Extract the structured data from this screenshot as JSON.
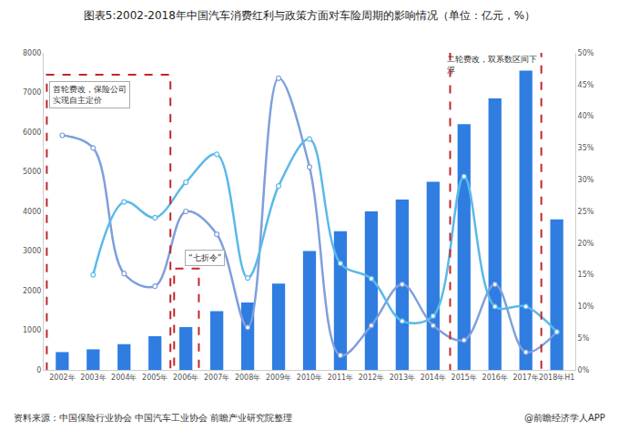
{
  "chart_data": {
    "type": "bar",
    "title": "图表5:2002-2018年中国汽车消费红利与政策方面对车险周期的影响情况（单位：亿元，%）",
    "source": "资料来源：中国保险行业协会 中国汽车工业协会 前瞻产业研究院整理",
    "credit": "@前瞻经济学人APP",
    "categories": [
      "2002年",
      "2003年",
      "2004年",
      "2005年",
      "2006年",
      "2007年",
      "2008年",
      "2009年",
      "2010年",
      "2011年",
      "2012年",
      "2013年",
      "2014年",
      "2015年",
      "2016年",
      "2017年",
      "2018年H1"
    ],
    "series": [
      {
        "type": "bar",
        "color": "#2f7de1",
        "values": [
          450,
          520,
          650,
          850,
          1080,
          1480,
          1700,
          2180,
          3000,
          3500,
          4000,
          4300,
          4750,
          6200,
          6850,
          7550,
          3800
        ]
      },
      {
        "type": "line",
        "axis": "y2",
        "color": "#7f9fdc",
        "marker": "circle",
        "line_style": "smooth",
        "values": [
          37,
          35,
          15.2,
          13.2,
          25,
          21.4,
          6.7,
          46,
          32,
          2.3,
          7,
          13.5,
          7,
          4.7,
          13.5,
          2.8,
          6
        ]
      },
      {
        "type": "line",
        "axis": "y2",
        "color": "#5bb9e8",
        "marker": "circle",
        "line_style": "smooth",
        "values": [
          null,
          15,
          26.5,
          24,
          29.6,
          34,
          14.5,
          29,
          36.4,
          16.8,
          14.4,
          7.7,
          8.5,
          30.5,
          10,
          10,
          6
        ]
      }
    ],
    "ylim": [
      0,
      8000
    ],
    "yticks": [
      0,
      1000,
      2000,
      3000,
      4000,
      5000,
      6000,
      7000,
      8000
    ],
    "y2lim": [
      0,
      50
    ],
    "y2ticks": [
      {
        "value": 0,
        "label": "0%"
      },
      {
        "value": 5,
        "label": "5%"
      },
      {
        "value": 10,
        "label": "10%"
      },
      {
        "value": 15,
        "label": "15%"
      },
      {
        "value": 20,
        "label": "20%"
      },
      {
        "value": 25,
        "label": "25%"
      },
      {
        "value": 30,
        "label": "30%"
      },
      {
        "value": 35,
        "label": "35%"
      },
      {
        "value": 40,
        "label": "40%"
      },
      {
        "value": 45,
        "label": "45%"
      },
      {
        "value": 50,
        "label": "50%"
      }
    ],
    "grid": false,
    "annotations": [
      {
        "lines": [
          "首轮费改，保险公司",
          "实现自主定价"
        ]
      },
      {
        "lines": [
          "“七折令”"
        ]
      },
      {
        "lines": [
          "二轮费改，双系数区间下",
          "浮"
        ]
      }
    ]
  }
}
